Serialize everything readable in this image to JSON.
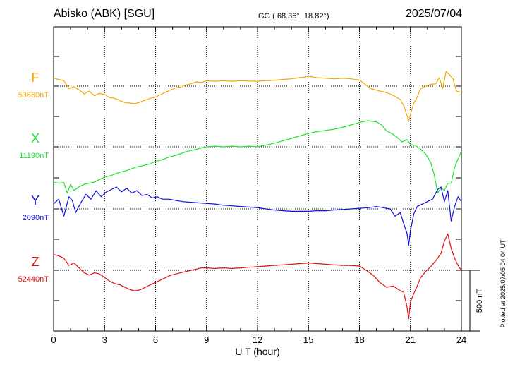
{
  "header": {
    "station": "Abisko (ABK)  [SGU]",
    "coords": "GG ( 68.36°,  18.82°)",
    "date": "2025/07/04"
  },
  "footer": {
    "plotted": "Plotted at 2025/07/05 04:04 UT"
  },
  "chart_data": {
    "type": "line",
    "xlabel": "U T (hour)",
    "xlim": [
      0,
      24
    ],
    "xticks": [
      "0",
      "3",
      "6",
      "9",
      "12",
      "15",
      "18",
      "21",
      "24"
    ],
    "scale_bar": {
      "label": "500 nT",
      "value": 500
    },
    "series": [
      {
        "name": "F",
        "baseline_label": "53660nT",
        "baseline": 53660,
        "color": "#f2a900",
        "x": [
          0,
          0.3,
          0.6,
          0.9,
          1.2,
          1.5,
          1.8,
          2.1,
          2.4,
          2.7,
          3.0,
          3.3,
          3.6,
          3.9,
          4.2,
          4.5,
          4.8,
          5.1,
          5.4,
          5.7,
          6.0,
          6.3,
          6.6,
          6.9,
          7.2,
          7.5,
          7.8,
          8.1,
          8.4,
          8.7,
          9.0,
          9.5,
          10,
          10.5,
          11,
          11.5,
          12,
          12.5,
          13,
          13.5,
          14,
          14.5,
          15,
          15.5,
          16,
          16.5,
          17,
          17.5,
          18,
          18.3,
          18.6,
          18.9,
          19.2,
          19.5,
          19.8,
          20.1,
          20.4,
          20.6,
          20.8,
          20.9,
          21.0,
          21.2,
          21.4,
          21.6,
          21.9,
          22.2,
          22.5,
          22.7,
          22.9,
          23.1,
          23.3,
          23.5,
          23.7,
          23.9,
          24.0
        ],
        "y": [
          65,
          55,
          45,
          -20,
          -5,
          -30,
          -65,
          -40,
          -80,
          -60,
          -70,
          -95,
          -100,
          -120,
          -135,
          -140,
          -145,
          -130,
          -115,
          -100,
          -90,
          -70,
          -50,
          -30,
          -15,
          -5,
          10,
          20,
          35,
          30,
          45,
          40,
          45,
          40,
          45,
          42,
          40,
          45,
          48,
          55,
          60,
          70,
          80,
          70,
          65,
          60,
          65,
          60,
          50,
          20,
          -15,
          -30,
          -40,
          -50,
          -65,
          -85,
          -110,
          -160,
          -240,
          -290,
          -230,
          -140,
          -90,
          -20,
          0,
          15,
          20,
          70,
          -20,
          120,
          95,
          60,
          -40,
          -50,
          -45
        ]
      },
      {
        "name": "X",
        "baseline_label": "11190nT",
        "baseline": 11190,
        "color": "#22e032",
        "x": [
          0,
          0.3,
          0.6,
          0.8,
          1.0,
          1.2,
          1.5,
          1.8,
          2.1,
          2.4,
          2.7,
          3.0,
          3.3,
          3.6,
          3.9,
          4.2,
          4.5,
          4.8,
          5.1,
          5.4,
          5.7,
          6.0,
          6.3,
          6.6,
          6.9,
          7.2,
          7.5,
          7.8,
          8.1,
          8.4,
          8.7,
          9.0,
          9.5,
          10,
          10.5,
          11,
          11.5,
          12,
          12.5,
          13,
          13.5,
          14,
          14.5,
          15,
          15.5,
          16,
          16.5,
          17,
          17.5,
          18,
          18.5,
          19,
          19.3,
          19.6,
          19.9,
          20.2,
          20.5,
          20.8,
          21.0,
          21.3,
          21.6,
          21.9,
          22.2,
          22.4,
          22.6,
          22.8,
          23.0,
          23.2,
          23.4,
          23.6,
          23.8,
          24.0
        ],
        "y": [
          -290,
          -300,
          -295,
          -380,
          -310,
          -360,
          -330,
          -310,
          -300,
          -290,
          -270,
          -250,
          -240,
          -225,
          -210,
          -200,
          -185,
          -170,
          -160,
          -150,
          -140,
          -120,
          -110,
          -95,
          -80,
          -70,
          -55,
          -40,
          -30,
          -20,
          -10,
          0,
          5,
          0,
          5,
          0,
          5,
          0,
          15,
          30,
          50,
          70,
          90,
          110,
          125,
          135,
          145,
          160,
          180,
          200,
          215,
          205,
          180,
          130,
          110,
          80,
          40,
          60,
          20,
          10,
          -20,
          -60,
          -130,
          -230,
          -380,
          -340,
          -360,
          -300,
          -300,
          -170,
          -100,
          -40
        ]
      },
      {
        "name": "Y",
        "baseline_label": "2090nT",
        "baseline": 2090,
        "color": "#1010e0",
        "x": [
          0,
          0.3,
          0.6,
          0.9,
          1.1,
          1.3,
          1.6,
          1.9,
          2.2,
          2.5,
          2.8,
          3.1,
          3.4,
          3.7,
          4.0,
          4.3,
          4.6,
          4.9,
          5.2,
          5.5,
          5.8,
          6.1,
          6.4,
          6.8,
          7.2,
          7.6,
          8,
          8.5,
          9,
          9.5,
          10,
          10.5,
          11,
          11.5,
          12,
          12.5,
          13,
          13.5,
          14,
          14.5,
          15,
          15.5,
          16,
          16.5,
          17,
          17.5,
          18,
          18.5,
          19,
          19.4,
          19.8,
          20.1,
          20.4,
          20.6,
          20.8,
          20.9,
          21.0,
          21.2,
          21.4,
          21.7,
          22.0,
          22.3,
          22.6,
          22.8,
          23.0,
          23.2,
          23.4,
          23.6,
          23.8,
          24.0
        ],
        "y": [
          40,
          80,
          -60,
          100,
          70,
          -30,
          50,
          120,
          80,
          150,
          100,
          140,
          160,
          180,
          140,
          170,
          130,
          150,
          110,
          120,
          90,
          100,
          80,
          80,
          70,
          60,
          55,
          50,
          45,
          40,
          30,
          25,
          20,
          15,
          10,
          0,
          -10,
          -15,
          -20,
          -20,
          -20,
          -15,
          -15,
          -10,
          -5,
          0,
          5,
          10,
          20,
          10,
          0,
          -60,
          -30,
          -120,
          -200,
          -300,
          -180,
          -40,
          20,
          40,
          60,
          80,
          160,
          180,
          60,
          150,
          -100,
          20,
          100,
          60
        ]
      },
      {
        "name": "Z",
        "baseline_label": "52440nT",
        "baseline": 52440,
        "color": "#e01010",
        "x": [
          0,
          0.3,
          0.6,
          0.9,
          1.2,
          1.5,
          1.8,
          2.1,
          2.4,
          2.7,
          3.0,
          3.3,
          3.6,
          3.9,
          4.2,
          4.5,
          4.8,
          5.1,
          5.4,
          5.7,
          6.0,
          6.3,
          6.6,
          6.9,
          7.2,
          7.5,
          7.8,
          8.1,
          8.4,
          8.7,
          9.0,
          9.5,
          10,
          10.5,
          11,
          11.5,
          12,
          12.5,
          13,
          13.5,
          14,
          14.5,
          15,
          15.5,
          16,
          16.5,
          17,
          17.5,
          18,
          18.4,
          18.8,
          19.2,
          19.6,
          20.0,
          20.3,
          20.6,
          20.8,
          20.9,
          21.0,
          21.2,
          21.4,
          21.6,
          21.9,
          22.2,
          22.5,
          22.8,
          23.0,
          23.2,
          23.4,
          23.6,
          23.8,
          24.0
        ],
        "y": [
          130,
          120,
          100,
          40,
          60,
          20,
          -20,
          -40,
          -20,
          -30,
          -60,
          -90,
          -110,
          -120,
          -140,
          -160,
          -170,
          -160,
          -140,
          -120,
          -100,
          -80,
          -60,
          -40,
          -30,
          -20,
          -10,
          0,
          10,
          20,
          20,
          15,
          20,
          15,
          20,
          25,
          30,
          35,
          40,
          45,
          50,
          55,
          60,
          55,
          50,
          45,
          40,
          40,
          35,
          0,
          -40,
          -100,
          -140,
          -130,
          -160,
          -180,
          -300,
          -400,
          -260,
          -190,
          -130,
          -60,
          -10,
          30,
          80,
          140,
          240,
          300,
          180,
          100,
          40,
          0
        ]
      }
    ]
  }
}
